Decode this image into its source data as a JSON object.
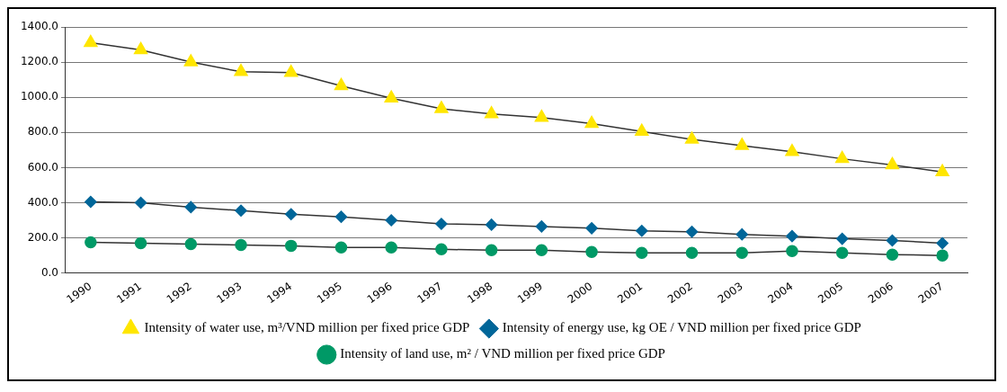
{
  "chart_data": {
    "type": "line",
    "categories": [
      "1990",
      "1991",
      "1992",
      "1993",
      "1994",
      "1995",
      "1996",
      "1997",
      "1998",
      "1999",
      "2000",
      "2001",
      "2002",
      "2003",
      "2004",
      "2005",
      "2006",
      "2007"
    ],
    "series": [
      {
        "name": "Intensity of water use, m³/VND million per fixed price GDP",
        "color": "#ffe600",
        "marker": "triangle",
        "values": [
          1310,
          1270,
          1200,
          1145,
          1140,
          1065,
          995,
          935,
          905,
          885,
          850,
          805,
          760,
          725,
          690,
          650,
          615,
          575
        ]
      },
      {
        "name": "Intensity of energy use, kg OE / VND million per fixed price GDP",
        "color": "#006699",
        "marker": "diamond",
        "values": [
          405,
          400,
          375,
          355,
          335,
          320,
          300,
          280,
          275,
          265,
          255,
          240,
          235,
          220,
          210,
          195,
          185,
          170
        ]
      },
      {
        "name": "Intensity of land use, m² / VND million per fixed price GDP",
        "color": "#009966",
        "marker": "circle",
        "values": [
          175,
          170,
          165,
          160,
          155,
          145,
          145,
          135,
          130,
          130,
          120,
          115,
          115,
          115,
          125,
          115,
          105,
          100
        ]
      }
    ],
    "ylim": [
      0,
      1400
    ],
    "yticks": [
      {
        "value": 0,
        "label": "0.0"
      },
      {
        "value": 200,
        "label": "200.0"
      },
      {
        "value": 400,
        "label": "400.0"
      },
      {
        "value": 600,
        "label": "600.0"
      },
      {
        "value": 800,
        "label": "800.0"
      },
      {
        "value": 1000,
        "label": "1000.0"
      },
      {
        "value": 1200,
        "label": "1200.0"
      },
      {
        "value": 1400,
        "label": "1400.0"
      }
    ],
    "grid": "y",
    "legend": "bottom",
    "line_style": "solid"
  }
}
